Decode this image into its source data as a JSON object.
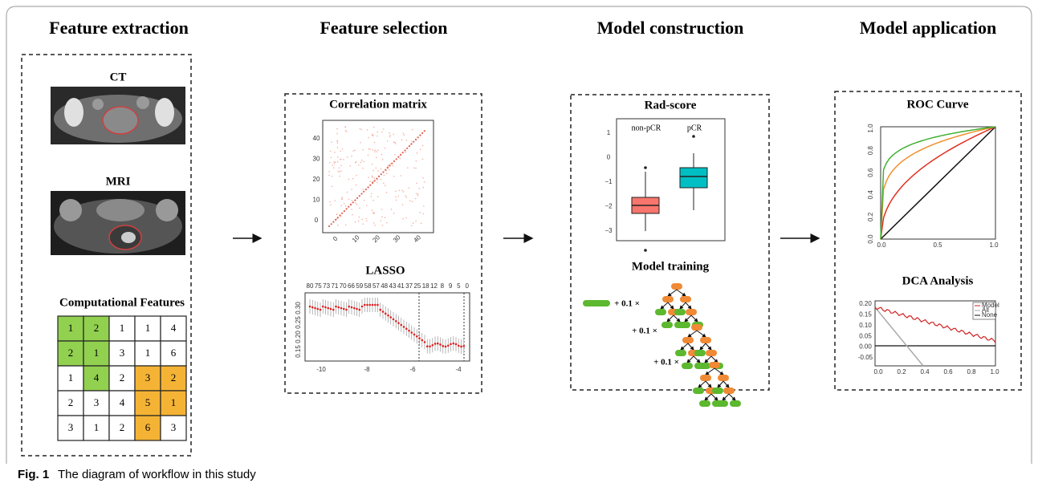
{
  "extraction": {
    "title": "Feature extraction",
    "ct_label": "CT",
    "mri_label": "MRI",
    "features_title": "Computational Features",
    "grid": [
      [
        "1",
        "2",
        "1",
        "1",
        "4"
      ],
      [
        "2",
        "1",
        "3",
        "1",
        "6"
      ],
      [
        "1",
        "4",
        "2",
        "3",
        "2"
      ],
      [
        "2",
        "3",
        "4",
        "5",
        "1"
      ],
      [
        "3",
        "1",
        "2",
        "6",
        "3"
      ]
    ]
  },
  "selection": {
    "title": "Feature selection",
    "corr_title": "Correlation matrix",
    "corr_ticks": [
      "0",
      "10",
      "20",
      "30",
      "40"
    ],
    "lasso_title": "LASSO",
    "lasso_top": [
      "80",
      "75",
      "73",
      "71",
      "70",
      "66",
      "59",
      "58",
      "57",
      "48",
      "43",
      "41",
      "37",
      "25",
      "18",
      "12",
      "8",
      "9",
      "5",
      "0"
    ],
    "lasso_yticks": [
      "0.15",
      "0.20",
      "0.25",
      "0.30"
    ],
    "lasso_xticks": [
      "-10",
      "-8",
      "-6",
      "-4"
    ]
  },
  "construction": {
    "title": "Model construction",
    "rad_title": "Rad-score",
    "groups": [
      "non-pCR",
      "pCR"
    ],
    "rad_yticks": [
      "1",
      "0",
      "−1",
      "−2",
      "−3"
    ],
    "training_title": "Model training",
    "steps": [
      "+ 0.1 ×",
      "+ 0.1 ×",
      "+ 0.1 ×"
    ]
  },
  "application": {
    "title": "Model application",
    "roc_title": "ROC Curve",
    "roc_yticks": [
      "0.0",
      "0.2",
      "0.4",
      "0.6",
      "0.8",
      "1.0"
    ],
    "roc_xticks": [
      "0.0",
      "0.5",
      "1.0"
    ],
    "dca_title": "DCA Analysis",
    "dca_legend": [
      "Model",
      "All",
      "None"
    ],
    "dca_yticks": [
      "0.20",
      "0.15",
      "0.10",
      "0.05",
      "0.00",
      "-0.05"
    ],
    "dca_xticks": [
      "0.0",
      "0.2",
      "0.4",
      "0.6",
      "0.8",
      "1.0"
    ]
  },
  "caption": {
    "label": "Fig. 1",
    "text": "The diagram of workflow in this study"
  }
}
